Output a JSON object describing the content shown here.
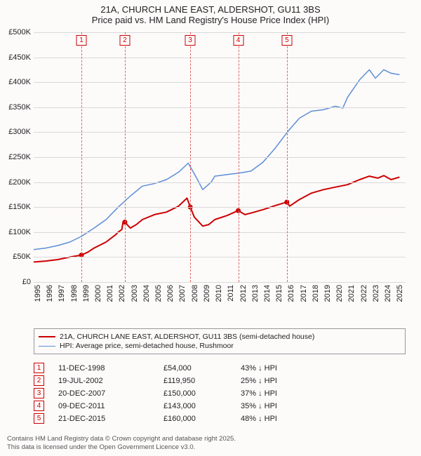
{
  "title": {
    "line1": "21A, CHURCH LANE EAST, ALDERSHOT, GU11 3BS",
    "line2": "Price paid vs. HM Land Registry's House Price Index (HPI)"
  },
  "chart": {
    "type": "line",
    "background_color": "#fdfafa",
    "grid_color": "#d9d9d9",
    "text_color": "#222222",
    "vline_color": "#e06666",
    "xlim": [
      1995,
      2025.8
    ],
    "ylim": [
      0,
      500
    ],
    "yticks": [
      0,
      50,
      100,
      150,
      200,
      250,
      300,
      350,
      400,
      450,
      500
    ],
    "ytick_labels": [
      "£0",
      "£50K",
      "£100K",
      "£150K",
      "£200K",
      "£250K",
      "£300K",
      "£350K",
      "£400K",
      "£450K",
      "£500K"
    ],
    "xticks": [
      1995,
      1996,
      1997,
      1998,
      1999,
      2000,
      2001,
      2002,
      2003,
      2004,
      2005,
      2006,
      2007,
      2008,
      2009,
      2010,
      2011,
      2012,
      2013,
      2014,
      2015,
      2016,
      2017,
      2018,
      2019,
      2020,
      2021,
      2022,
      2023,
      2024,
      2025
    ],
    "series": [
      {
        "name": "property",
        "label": "21A, CHURCH LANE EAST, ALDERSHOT, GU11 3BS (semi-detached house)",
        "color": "#cc0000",
        "line_width": 2,
        "points": [
          [
            1995,
            40
          ],
          [
            1996,
            42
          ],
          [
            1997,
            45
          ],
          [
            1998,
            50
          ],
          [
            1998.95,
            54
          ],
          [
            1999.5,
            60
          ],
          [
            2000,
            68
          ],
          [
            2001,
            80
          ],
          [
            2001.8,
            95
          ],
          [
            2002,
            100
          ],
          [
            2002.3,
            105
          ],
          [
            2002.4,
            120
          ],
          [
            2002.55,
            119.95
          ],
          [
            2003,
            108
          ],
          [
            2003.5,
            115
          ],
          [
            2004,
            125
          ],
          [
            2005,
            135
          ],
          [
            2006,
            140
          ],
          [
            2007,
            152
          ],
          [
            2007.7,
            168
          ],
          [
            2007.97,
            150
          ],
          [
            2008.3,
            130
          ],
          [
            2009,
            112
          ],
          [
            2009.5,
            115
          ],
          [
            2010,
            125
          ],
          [
            2011,
            133
          ],
          [
            2011.94,
            143
          ],
          [
            2012.5,
            135
          ],
          [
            2013,
            138
          ],
          [
            2014,
            145
          ],
          [
            2015,
            153
          ],
          [
            2015.97,
            160
          ],
          [
            2016.2,
            152
          ],
          [
            2017,
            165
          ],
          [
            2018,
            178
          ],
          [
            2019,
            185
          ],
          [
            2020,
            190
          ],
          [
            2021,
            195
          ],
          [
            2022,
            205
          ],
          [
            2022.8,
            212
          ],
          [
            2023.5,
            208
          ],
          [
            2024,
            213
          ],
          [
            2024.6,
            205
          ],
          [
            2025.3,
            210
          ]
        ],
        "markers": [
          {
            "x": 1998.95,
            "y": 54
          },
          {
            "x": 2002.55,
            "y": 119.95
          },
          {
            "x": 2007.97,
            "y": 150
          },
          {
            "x": 2011.94,
            "y": 143
          },
          {
            "x": 2015.97,
            "y": 160
          }
        ]
      },
      {
        "name": "hpi",
        "label": "HPI: Average price, semi-detached house, Rushmoor",
        "color": "#5b8fd6",
        "line_width": 1.5,
        "points": [
          [
            1995,
            65
          ],
          [
            1996,
            68
          ],
          [
            1997,
            73
          ],
          [
            1998,
            80
          ],
          [
            1999,
            92
          ],
          [
            2000,
            108
          ],
          [
            2001,
            125
          ],
          [
            2002,
            150
          ],
          [
            2003,
            172
          ],
          [
            2004,
            192
          ],
          [
            2005,
            197
          ],
          [
            2006,
            205
          ],
          [
            2007,
            220
          ],
          [
            2007.8,
            238
          ],
          [
            2008.5,
            208
          ],
          [
            2009,
            185
          ],
          [
            2009.7,
            200
          ],
          [
            2010,
            212
          ],
          [
            2011,
            215
          ],
          [
            2012,
            218
          ],
          [
            2013,
            222
          ],
          [
            2014,
            240
          ],
          [
            2015,
            268
          ],
          [
            2016,
            300
          ],
          [
            2017,
            328
          ],
          [
            2018,
            342
          ],
          [
            2019,
            345
          ],
          [
            2020,
            352
          ],
          [
            2020.6,
            348
          ],
          [
            2021,
            370
          ],
          [
            2022,
            405
          ],
          [
            2022.8,
            425
          ],
          [
            2023.3,
            408
          ],
          [
            2024,
            425
          ],
          [
            2024.6,
            418
          ],
          [
            2025.3,
            415
          ]
        ]
      }
    ],
    "event_lines": [
      {
        "num": "1",
        "x": 1998.95
      },
      {
        "num": "2",
        "x": 2002.55
      },
      {
        "num": "3",
        "x": 2007.97
      },
      {
        "num": "4",
        "x": 2011.94
      },
      {
        "num": "5",
        "x": 2015.97
      }
    ]
  },
  "legend": {
    "items": [
      {
        "color": "#cc0000",
        "width": 2,
        "label": "21A, CHURCH LANE EAST, ALDERSHOT, GU11 3BS (semi-detached house)"
      },
      {
        "color": "#5b8fd6",
        "width": 1.5,
        "label": "HPI: Average price, semi-detached house, Rushmoor"
      }
    ]
  },
  "events": [
    {
      "num": "1",
      "date": "11-DEC-1998",
      "price": "£54,000",
      "diff": "43% ↓ HPI"
    },
    {
      "num": "2",
      "date": "19-JUL-2002",
      "price": "£119,950",
      "diff": "25% ↓ HPI"
    },
    {
      "num": "3",
      "date": "20-DEC-2007",
      "price": "£150,000",
      "diff": "37% ↓ HPI"
    },
    {
      "num": "4",
      "date": "09-DEC-2011",
      "price": "£143,000",
      "diff": "35% ↓ HPI"
    },
    {
      "num": "5",
      "date": "21-DEC-2015",
      "price": "£160,000",
      "diff": "48% ↓ HPI"
    }
  ],
  "footer": {
    "line1": "Contains HM Land Registry data © Crown copyright and database right 2025.",
    "line2": "This data is licensed under the Open Government Licence v3.0."
  }
}
